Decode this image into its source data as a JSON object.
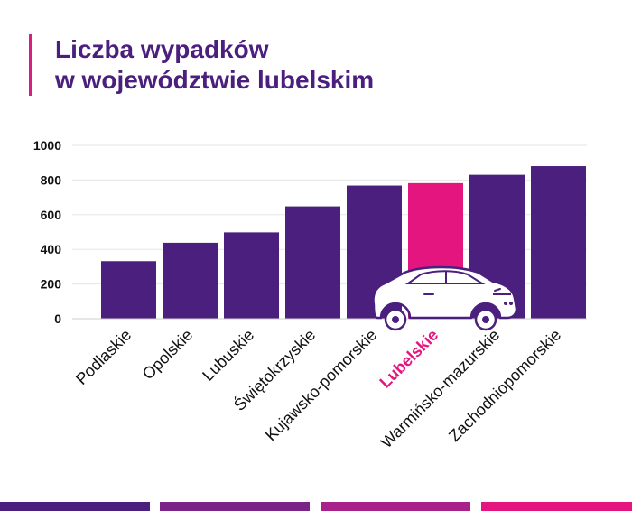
{
  "title": {
    "line1": "Liczba wypadków",
    "line2": "w województwie lubelskim"
  },
  "chart_data": {
    "type": "bar",
    "title": "Liczba wypadków w województwie lubelskim",
    "categories": [
      "Podlaskie",
      "Opolskie",
      "Lubuskie",
      "Świętokrzyskie",
      "Kujawsko-pomorskie",
      "Lubelskie",
      "Warmińsko-mazurskie",
      "Zachodniopomorskie"
    ],
    "values": [
      332,
      438,
      498,
      648,
      768,
      782,
      830,
      880
    ],
    "highlight": "Lubelskie",
    "ylim": [
      0,
      1000
    ],
    "yticks": [
      0,
      200,
      400,
      600,
      800,
      1000
    ],
    "xlabel": "",
    "ylabel": "",
    "grid": true,
    "legend": "none"
  },
  "decoration": {
    "icon": "car-icon"
  },
  "colors": {
    "bar": "#4b1f7d",
    "highlight": "#e5157f",
    "title": "#4b1f7d",
    "accent": "#d61f80",
    "footer": [
      "#4b1f7d",
      "#7b2488",
      "#a8208a",
      "#e5157f"
    ]
  }
}
